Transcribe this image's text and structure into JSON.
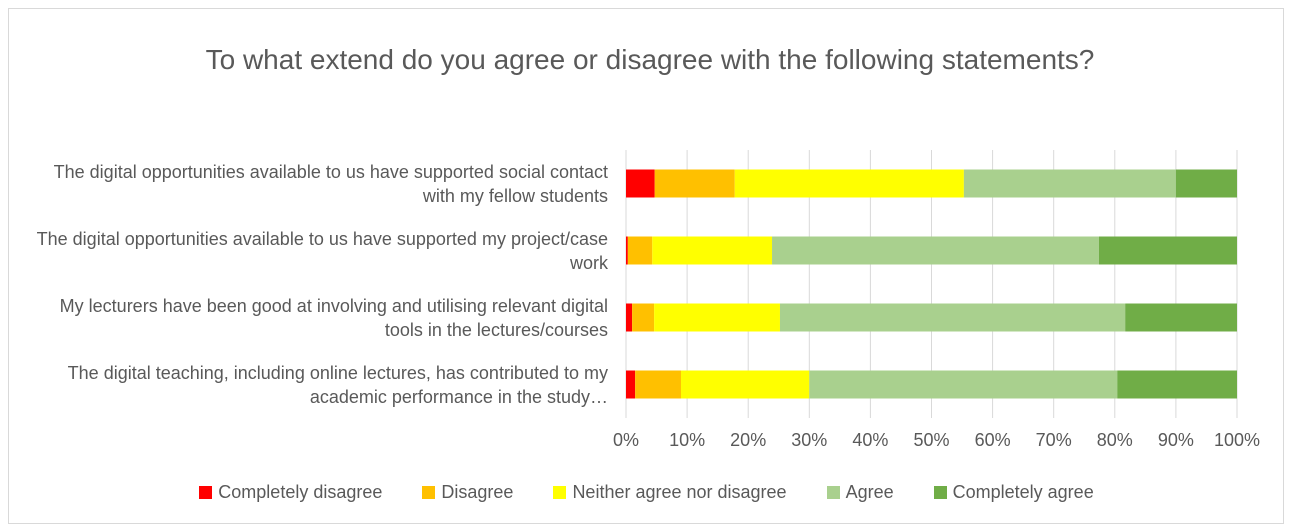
{
  "chart_data": {
    "type": "stacked-bar-horizontal",
    "title": "To what extend do you agree or disagree with the following statements?",
    "categories": [
      "The digital opportunities available to us have supported social contact with my fellow students",
      "The digital opportunities available to us have supported my project/case work",
      "My lecturers have been good at involving and utilising relevant digital tools in the lectures/courses",
      "The digital teaching, including online lectures, has contributed to my academic performance in the study…"
    ],
    "series": [
      {
        "name": "Completely disagree",
        "color": "#ff0000",
        "values": [
          4.7,
          0.3,
          1.0,
          1.5
        ]
      },
      {
        "name": "Disagree",
        "color": "#ffc000",
        "values": [
          13.1,
          4.0,
          3.6,
          7.5
        ]
      },
      {
        "name": "Neither agree nor disagree",
        "color": "#ffff00",
        "values": [
          37.5,
          19.6,
          20.6,
          21.0
        ]
      },
      {
        "name": "Agree",
        "color": "#a9d08e",
        "values": [
          34.7,
          53.5,
          56.5,
          50.4
        ]
      },
      {
        "name": "Completely agree",
        "color": "#70ad47",
        "values": [
          10.0,
          22.6,
          18.3,
          19.6
        ]
      }
    ],
    "xlim": [
      0,
      100
    ],
    "xticks": [
      {
        "value": 0,
        "label": "0%"
      },
      {
        "value": 10,
        "label": "10%"
      },
      {
        "value": 20,
        "label": "20%"
      },
      {
        "value": 30,
        "label": "30%"
      },
      {
        "value": 40,
        "label": "40%"
      },
      {
        "value": 50,
        "label": "50%"
      },
      {
        "value": 60,
        "label": "60%"
      },
      {
        "value": 70,
        "label": "70%"
      },
      {
        "value": 80,
        "label": "80%"
      },
      {
        "value": 90,
        "label": "90%"
      },
      {
        "value": 100,
        "label": "100%"
      }
    ],
    "grid": true,
    "legend": "bottom"
  }
}
